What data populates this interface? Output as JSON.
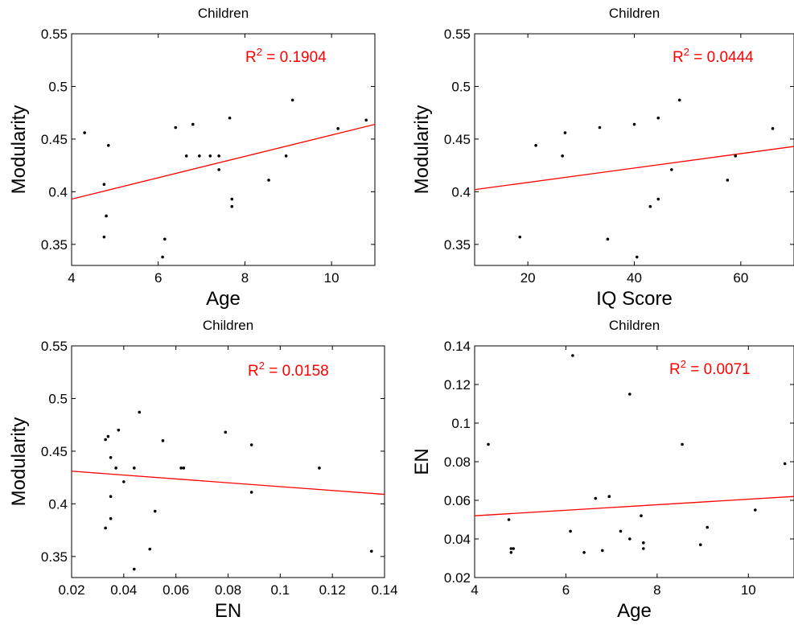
{
  "chart_data": [
    {
      "type": "scatter",
      "title": "Children",
      "xlabel": "Age",
      "ylabel": "Modularity",
      "xlim": [
        4,
        11
      ],
      "ylim": [
        0.33,
        0.55
      ],
      "xticks": [
        "4",
        "6",
        "8",
        "10"
      ],
      "yticks": [
        "0.35",
        "0.4",
        "0.45",
        "0.5",
        "0.55"
      ],
      "annotation": "R",
      "annotation_sup": "2",
      "annotation_value": " = 0.1904",
      "annotation_color": "#ff0000",
      "point_color": "#000000",
      "fit_color": "#ff0000",
      "points": [
        [
          4.3,
          0.456
        ],
        [
          4.75,
          0.407
        ],
        [
          4.75,
          0.357
        ],
        [
          4.8,
          0.377
        ],
        [
          4.85,
          0.444
        ],
        [
          6.1,
          0.338
        ],
        [
          6.15,
          0.355
        ],
        [
          6.4,
          0.461
        ],
        [
          6.65,
          0.434
        ],
        [
          6.8,
          0.464
        ],
        [
          6.95,
          0.434
        ],
        [
          7.2,
          0.434
        ],
        [
          7.4,
          0.434
        ],
        [
          7.4,
          0.421
        ],
        [
          7.65,
          0.47
        ],
        [
          7.7,
          0.393
        ],
        [
          7.7,
          0.386
        ],
        [
          8.55,
          0.411
        ],
        [
          8.95,
          0.434
        ],
        [
          9.1,
          0.487
        ],
        [
          10.15,
          0.46
        ],
        [
          10.8,
          0.468
        ]
      ],
      "fit_line": [
        [
          4,
          0.393
        ],
        [
          11,
          0.464
        ]
      ]
    },
    {
      "type": "scatter",
      "title": "Children",
      "xlabel": "IQ Score",
      "ylabel": "Modularity",
      "xlim": [
        10,
        70
      ],
      "ylim": [
        0.33,
        0.55
      ],
      "xticks": [
        "20",
        "40",
        "60"
      ],
      "yticks": [
        "0.35",
        "0.4",
        "0.45",
        "0.5",
        "0.55"
      ],
      "annotation": "R",
      "annotation_sup": "2",
      "annotation_value": " = 0.0444",
      "annotation_color": "#ff0000",
      "point_color": "#000000",
      "fit_color": "#ff0000",
      "points": [
        [
          18.5,
          0.357
        ],
        [
          21.5,
          0.444
        ],
        [
          26.5,
          0.434
        ],
        [
          27,
          0.456
        ],
        [
          33.5,
          0.461
        ],
        [
          35,
          0.355
        ],
        [
          40,
          0.464
        ],
        [
          40.5,
          0.338
        ],
        [
          43,
          0.386
        ],
        [
          44.5,
          0.47
        ],
        [
          44.5,
          0.393
        ],
        [
          47,
          0.421
        ],
        [
          48.5,
          0.487
        ],
        [
          57.5,
          0.411
        ],
        [
          59,
          0.434
        ],
        [
          66,
          0.46
        ]
      ],
      "fit_line": [
        [
          10,
          0.402
        ],
        [
          70,
          0.443
        ]
      ]
    },
    {
      "type": "scatter",
      "title": "Children",
      "xlabel": "EN",
      "ylabel": "Modularity",
      "xlim": [
        0.02,
        0.14
      ],
      "ylim": [
        0.33,
        0.55
      ],
      "xticks": [
        "0.02",
        "0.04",
        "0.06",
        "0.08",
        "0.1",
        "0.12",
        "0.14"
      ],
      "yticks": [
        "0.35",
        "0.4",
        "0.45",
        "0.5",
        "0.55"
      ],
      "annotation": "R",
      "annotation_sup": "2",
      "annotation_value": " = 0.0158",
      "annotation_color": "#ff0000",
      "point_color": "#000000",
      "fit_color": "#ff0000",
      "points": [
        [
          0.033,
          0.377
        ],
        [
          0.033,
          0.461
        ],
        [
          0.034,
          0.464
        ],
        [
          0.035,
          0.444
        ],
        [
          0.035,
          0.407
        ],
        [
          0.035,
          0.386
        ],
        [
          0.037,
          0.434
        ],
        [
          0.038,
          0.47
        ],
        [
          0.04,
          0.421
        ],
        [
          0.044,
          0.338
        ],
        [
          0.044,
          0.434
        ],
        [
          0.046,
          0.487
        ],
        [
          0.05,
          0.357
        ],
        [
          0.052,
          0.393
        ],
        [
          0.055,
          0.46
        ],
        [
          0.062,
          0.434
        ],
        [
          0.063,
          0.434
        ],
        [
          0.079,
          0.468
        ],
        [
          0.089,
          0.456
        ],
        [
          0.089,
          0.411
        ],
        [
          0.115,
          0.434
        ],
        [
          0.135,
          0.355
        ]
      ],
      "fit_line": [
        [
          0.02,
          0.431
        ],
        [
          0.14,
          0.409
        ]
      ]
    },
    {
      "type": "scatter",
      "title": "Children",
      "xlabel": "Age",
      "ylabel": "EN",
      "xlim": [
        4,
        11
      ],
      "ylim": [
        0.02,
        0.14
      ],
      "xticks": [
        "4",
        "6",
        "8",
        "10"
      ],
      "yticks": [
        "0.02",
        "0.04",
        "0.06",
        "0.08",
        "0.1",
        "0.12",
        "0.14"
      ],
      "annotation": "R",
      "annotation_sup": "2",
      "annotation_value": " = 0.0071",
      "annotation_color": "#ff0000",
      "point_color": "#000000",
      "fit_color": "#ff0000",
      "points": [
        [
          4.3,
          0.089
        ],
        [
          4.75,
          0.05
        ],
        [
          4.8,
          0.035
        ],
        [
          4.8,
          0.033
        ],
        [
          4.85,
          0.035
        ],
        [
          6.1,
          0.044
        ],
        [
          6.15,
          0.135
        ],
        [
          6.4,
          0.033
        ],
        [
          6.65,
          0.061
        ],
        [
          6.8,
          0.034
        ],
        [
          6.95,
          0.062
        ],
        [
          7.2,
          0.044
        ],
        [
          7.4,
          0.04
        ],
        [
          7.4,
          0.115
        ],
        [
          7.65,
          0.052
        ],
        [
          7.7,
          0.038
        ],
        [
          7.7,
          0.035
        ],
        [
          8.55,
          0.089
        ],
        [
          8.95,
          0.037
        ],
        [
          9.1,
          0.046
        ],
        [
          10.15,
          0.055
        ],
        [
          10.8,
          0.079
        ]
      ],
      "fit_line": [
        [
          4,
          0.052
        ],
        [
          11,
          0.062
        ]
      ]
    }
  ]
}
